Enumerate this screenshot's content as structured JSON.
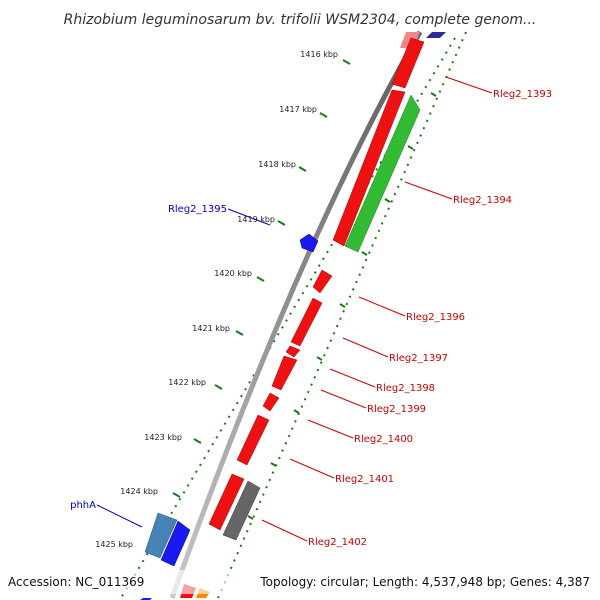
{
  "title": "Rhizobium leguminosarum bv. trifolii WSM2304, complete genom...",
  "accession": "Accession: NC_011369",
  "topology": "Topology: circular; Length: 4,537,948 bp; Genes: 4,387",
  "ticks": [
    "1416 kbp",
    "1417 kbp",
    "1418 kbp",
    "1419 kbp",
    "1420 kbp",
    "1421 kbp",
    "1422 kbp",
    "1423 kbp",
    "1424 kbp",
    "1425 kbp"
  ],
  "genes_reverse": [
    {
      "name": "Rleg2_1395",
      "color": "#1010dd"
    },
    {
      "name": "phhA",
      "color": "#1010dd"
    }
  ],
  "genes_forward": [
    {
      "name": "Rleg2_1393",
      "color": "#cc0000"
    },
    {
      "name": "Rleg2_1394",
      "color": "#cc0000"
    },
    {
      "name": "Rleg2_1396",
      "color": "#cc0000"
    },
    {
      "name": "Rleg2_1397",
      "color": "#cc0000"
    },
    {
      "name": "Rleg2_1398",
      "color": "#cc0000"
    },
    {
      "name": "Rleg2_1399",
      "color": "#cc0000"
    },
    {
      "name": "Rleg2_1400",
      "color": "#cc0000"
    },
    {
      "name": "Rleg2_1401",
      "color": "#cc0000"
    },
    {
      "name": "Rleg2_1402",
      "color": "#cc0000"
    }
  ],
  "colors": {
    "cds_forward": "#ee1111",
    "cds_green": "#33bb33",
    "cds_gray": "#666666",
    "cds_blue": "#1a1aee",
    "cds_steelblue": "#4682b4",
    "backbone": "#888888",
    "dotted_ring": "#1a7a1a"
  }
}
